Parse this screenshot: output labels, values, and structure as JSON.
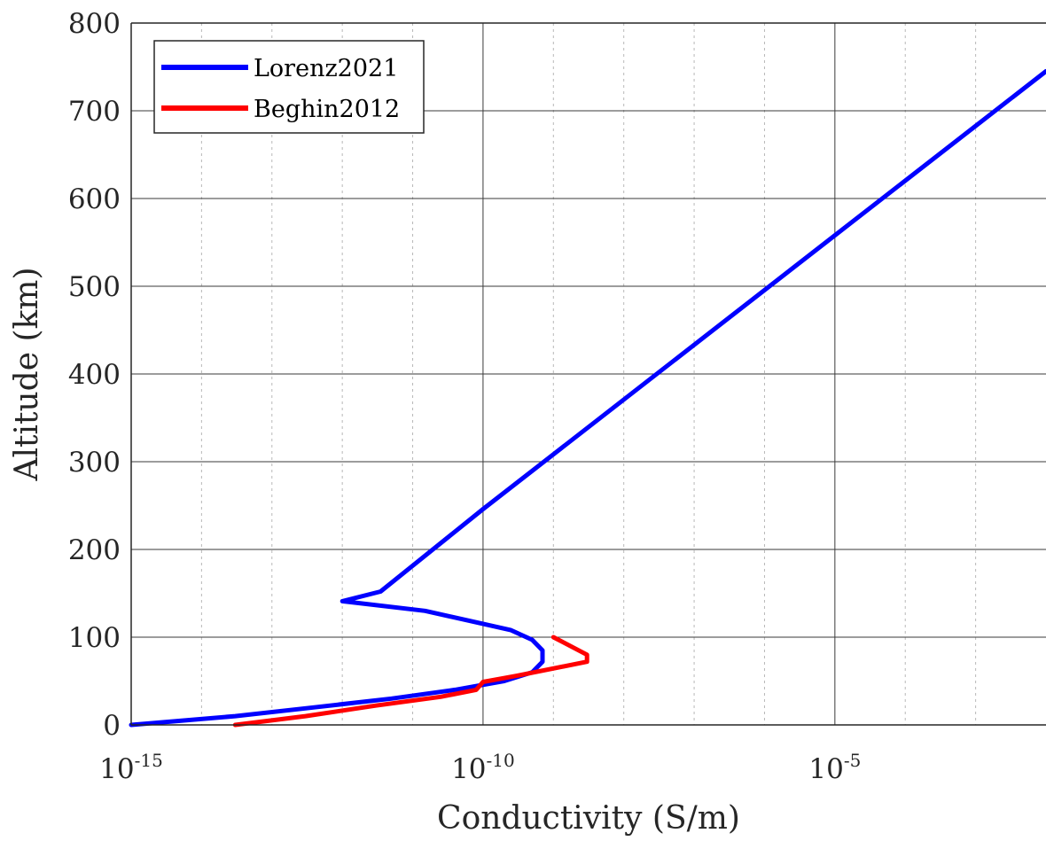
{
  "chart_data": {
    "type": "line",
    "xlabel": "Conductivity (S/m)",
    "ylabel": "Altitude (km)",
    "xscale": "log",
    "xlim": [
      1e-15,
      0.01
    ],
    "ylim": [
      0,
      800
    ],
    "grid": true,
    "minor_grid_x": true,
    "legend_position": "top-left",
    "xticks": [
      {
        "value": 1e-15,
        "base": "10",
        "exp": "-15"
      },
      {
        "value": 1e-10,
        "base": "10",
        "exp": "-10"
      },
      {
        "value": 1e-05,
        "base": "10",
        "exp": "-5"
      }
    ],
    "yticks": [
      "0",
      "100",
      "200",
      "300",
      "400",
      "500",
      "600",
      "700",
      "800"
    ],
    "series": [
      {
        "name": "Lorenz2021",
        "color": "#0000ff",
        "points": [
          {
            "x": 1e-15,
            "y": 0
          },
          {
            "x": 3e-14,
            "y": 10
          },
          {
            "x": 4e-13,
            "y": 20
          },
          {
            "x": 5e-12,
            "y": 30
          },
          {
            "x": 4e-11,
            "y": 40
          },
          {
            "x": 2e-10,
            "y": 50
          },
          {
            "x": 5e-10,
            "y": 60
          },
          {
            "x": 7e-10,
            "y": 72
          },
          {
            "x": 7e-10,
            "y": 85
          },
          {
            "x": 5e-10,
            "y": 97
          },
          {
            "x": 2.5e-10,
            "y": 108
          },
          {
            "x": 7e-11,
            "y": 118
          },
          {
            "x": 1.5e-11,
            "y": 130
          },
          {
            "x": 1e-12,
            "y": 141
          },
          {
            "x": 3.5e-12,
            "y": 152
          },
          {
            "x": 1e-10,
            "y": 246
          },
          {
            "x": 1e-05,
            "y": 558
          },
          {
            "x": 0.01,
            "y": 745
          }
        ]
      },
      {
        "name": "Beghin2012",
        "color": "#ff0000",
        "points": [
          {
            "x": 3e-14,
            "y": 0
          },
          {
            "x": 3e-13,
            "y": 10
          },
          {
            "x": 3e-12,
            "y": 22
          },
          {
            "x": 2.5e-11,
            "y": 32
          },
          {
            "x": 8e-11,
            "y": 40
          },
          {
            "x": 1e-10,
            "y": 49
          },
          {
            "x": 3e-10,
            "y": 56
          },
          {
            "x": 3e-09,
            "y": 72
          },
          {
            "x": 3e-09,
            "y": 80
          },
          {
            "x": 1e-09,
            "y": 100
          }
        ]
      }
    ]
  }
}
